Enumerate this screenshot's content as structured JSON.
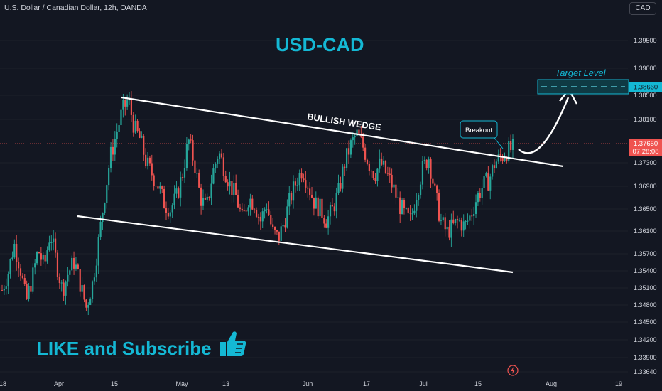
{
  "header": {
    "symbol_title": "U.S. Dollar / Canadian Dollar, 12h, OANDA",
    "currency_button": "CAD"
  },
  "annotations": {
    "headline": "USD-CAD",
    "pattern_label": "BULLISH WEDGE",
    "breakout_label": "Breakout",
    "target_label": "Target Level",
    "cta_text": "LIKE and Subscribe"
  },
  "price_axis": {
    "ticks": [
      "1.39500",
      "1.39000",
      "1.38500",
      "1.38100",
      "1.37300",
      "1.36900",
      "1.36500",
      "1.36100",
      "1.35700",
      "1.35400",
      "1.35100",
      "1.34800",
      "1.34500",
      "1.34200",
      "1.33900",
      "1.33640"
    ],
    "last_price": "1.37650",
    "countdown": "07:28:08",
    "target_price": "1.38660"
  },
  "time_axis": {
    "ticks": [
      "18",
      "Apr",
      "15",
      "May",
      "13",
      "Jun",
      "17",
      "Jul",
      "15",
      "Aug",
      "19"
    ]
  },
  "colors": {
    "background": "#131722",
    "up_candle": "#26a69a",
    "down_candle": "#ef5350",
    "accent": "#14b8d4",
    "trendline": "#ffffff",
    "axis_text": "#d1d4dc"
  },
  "chart_data": {
    "type": "candlestick",
    "symbol": "USD/CAD",
    "interval": "12h",
    "source": "OANDA",
    "y_range": [
      1.3364,
      1.3985
    ],
    "last_price": 1.3765,
    "target_price": 1.3866,
    "price_series": [
      1.352,
      1.355,
      1.36,
      1.356,
      1.35,
      1.354,
      1.359,
      1.356,
      1.362,
      1.357,
      1.352,
      1.355,
      1.357,
      1.353,
      1.349,
      1.353,
      1.36,
      1.368,
      1.375,
      1.379,
      1.383,
      1.385,
      1.38,
      1.378,
      1.374,
      1.372,
      1.37,
      1.367,
      1.366,
      1.368,
      1.372,
      1.378,
      1.374,
      1.368,
      1.366,
      1.372,
      1.376,
      1.373,
      1.37,
      1.368,
      1.364,
      1.368,
      1.367,
      1.364,
      1.367,
      1.362,
      1.361,
      1.364,
      1.368,
      1.371,
      1.373,
      1.37,
      1.367,
      1.366,
      1.364,
      1.366,
      1.369,
      1.374,
      1.377,
      1.379,
      1.377,
      1.374,
      1.372,
      1.374,
      1.372,
      1.37,
      1.367,
      1.365,
      1.364,
      1.369,
      1.373,
      1.375,
      1.369,
      1.364,
      1.362,
      1.363,
      1.364,
      1.363,
      1.365,
      1.368,
      1.37,
      1.371,
      1.374,
      1.375,
      1.376,
      1.3765
    ]
  }
}
